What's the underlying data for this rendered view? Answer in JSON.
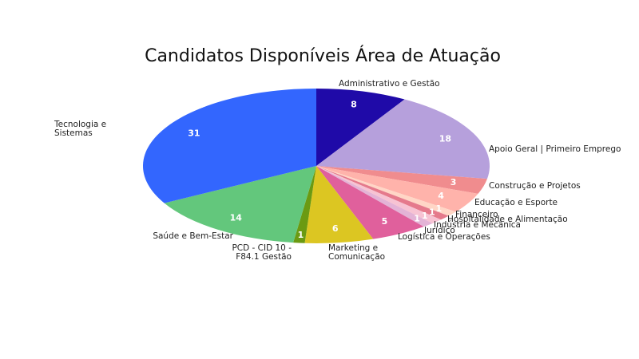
{
  "chart_data": {
    "type": "pie",
    "title": "Candidatos Disponíveis Área de Atuação",
    "categories": [
      "Administrativo e Gestão",
      "Apoio Geral | Primeiro Emprego",
      "Construção e Projetos",
      "Educação e Esporte",
      "Financeiro",
      "Hospitalidade e Alimentação",
      "Indústria e Mecânica",
      "Jurídico",
      "Logística e Operações",
      "Marketing e Comunicação",
      "PCD - CID 10 - F84.1 Gestão",
      "Saúde e Bem-Estar",
      "Tecnologia e Sistemas"
    ],
    "values": [
      8,
      18,
      3,
      4,
      1,
      1,
      1,
      1,
      5,
      6,
      1,
      14,
      31
    ],
    "colors": [
      "#1f0aa8",
      "#b6a0dc",
      "#f08c8e",
      "#ffb3ab",
      "#ffd6c6",
      "#e57a8c",
      "#f7c3d3",
      "#e3b3d6",
      "#e0609c",
      "#dcc622",
      "#6b9a12",
      "#63c77c",
      "#3366fe"
    ]
  }
}
